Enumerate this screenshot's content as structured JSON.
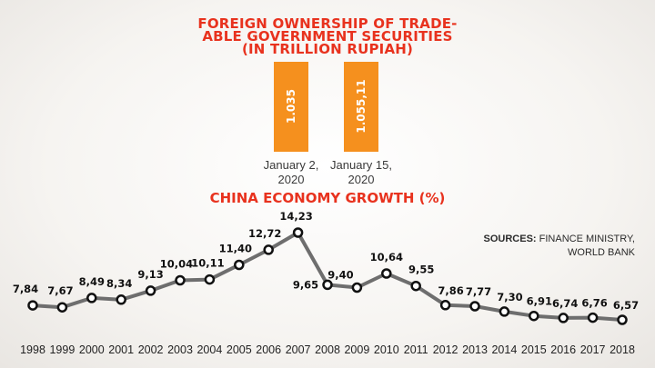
{
  "header": {
    "title_line1": "FOREIGN OWNERSHIP OF TRADE-",
    "title_line2": "ABLE GOVERNMENT SECURITIES",
    "title_line3": "(IN TRILLION RUPIAH)"
  },
  "bars": {
    "type": "bar",
    "items": [
      {
        "value_label": "1.035",
        "value": 1035,
        "date_line1": "January 2,",
        "date_line2": "2020"
      },
      {
        "value_label": "1.055,11",
        "value": 1055.11,
        "date_line1": "January 15,",
        "date_line2": "2020"
      }
    ],
    "color": "#f5901e"
  },
  "chart_data": {
    "type": "line",
    "title": "CHINA ECONOMY GROWTH (%)",
    "x": [
      "1998",
      "1999",
      "2000",
      "2001",
      "2002",
      "2003",
      "2004",
      "2005",
      "2006",
      "2007",
      "2008",
      "2009",
      "2010",
      "2011",
      "2012",
      "2013",
      "2014",
      "2015",
      "2016",
      "2017",
      "2018"
    ],
    "values": [
      7.84,
      7.67,
      8.49,
      8.34,
      9.13,
      10.04,
      10.11,
      11.4,
      12.72,
      14.23,
      9.65,
      9.4,
      10.64,
      9.55,
      7.86,
      7.77,
      7.3,
      6.91,
      6.74,
      6.76,
      6.57
    ],
    "value_labels": [
      "7,84",
      "7,67",
      "8,49",
      "8,34",
      "9,13",
      "10,04",
      "10,11",
      "11,40",
      "12,72",
      "14,23",
      "9,65",
      "9,40",
      "10,64",
      "9,55",
      "7,86",
      "7,77",
      "7,30",
      "6,91",
      "6,74",
      "6,76",
      "6,57"
    ],
    "line_color": "#6e6e6e",
    "marker_fill": "#ffffff",
    "marker_stroke": "#111111",
    "grid": false
  },
  "sources": {
    "label": "SOURCES:",
    "text1": "FINANCE MINISTRY,",
    "text2": "WORLD BANK"
  }
}
